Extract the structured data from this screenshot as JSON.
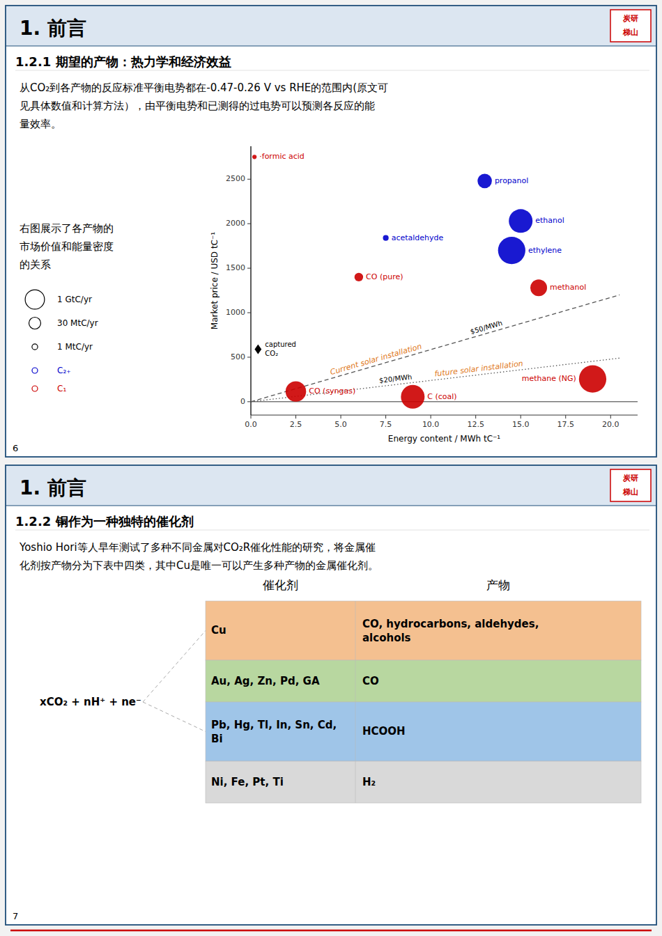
{
  "chart_data": {
    "type": "scatter",
    "x_label": "Energy content / MWh tC⁻¹",
    "y_label": "Market price / USD tC⁻¹",
    "xlim": [
      0,
      21.5
    ],
    "ylim": [
      -150,
      2870
    ],
    "xticks": [
      {
        "value": 0,
        "label": "0.0"
      },
      2.5,
      {
        "value": 5,
        "label": "5.0"
      },
      7.5,
      {
        "value": 10,
        "label": "10.0"
      },
      12.5,
      {
        "value": 15,
        "label": "15.0"
      },
      17.5,
      {
        "value": 20,
        "label": "20.0"
      }
    ],
    "yticks": [
      0,
      500,
      1000,
      1500,
      2000,
      2500
    ],
    "grid": false,
    "legend": "left",
    "series": [
      {
        "name": "C₂₊",
        "color": "#0000cc",
        "labels": [
          "propanol",
          "ethanol",
          "acetaldehyde",
          "ethylene"
        ],
        "x": [
          13.0,
          15.0,
          7.5,
          14.5
        ],
        "values": [
          2480,
          2030,
          1840,
          1700
        ],
        "sizes": [
          220,
          600,
          35,
          800
        ]
      },
      {
        "name": "C₁",
        "color": "#cc0000",
        "labels": [
          "·formic acid",
          "methanol",
          "CO (pure)",
          "CO (syngas)",
          "C (coal)",
          "methane (NG)"
        ],
        "x": [
          0.2,
          16.0,
          6.0,
          2.5,
          9.0,
          19.0
        ],
        "values": [
          2750,
          1280,
          1400,
          115,
          55,
          255
        ],
        "sizes": [
          20,
          300,
          80,
          450,
          600,
          800
        ]
      }
    ],
    "size_legend": [
      {
        "label": "1 GtC/yr",
        "size": 400
      },
      {
        "label": "30 MtC/yr",
        "size": 150
      },
      {
        "label": "1 MtC/yr",
        "size": 35
      }
    ],
    "reference_lines": [
      {
        "name": "$50/MWh",
        "annotation": "Current solar installation",
        "x": [
          0,
          20.5
        ],
        "values": [
          0,
          1200
        ],
        "line_style": "dashed"
      },
      {
        "name": "$20/MWh",
        "annotation": "future solar installation",
        "x": [
          0,
          20.5
        ],
        "values": [
          0,
          490
        ],
        "line_style": "dotted"
      }
    ],
    "annotation_color": "#e07820",
    "marker_points": [
      {
        "x": 0.4,
        "y": 590,
        "marker": "diamond",
        "labels": [
          "captured",
          "CO₂"
        ]
      }
    ]
  },
  "slides": [
    {
      "title": "1. 前言",
      "stamp": [
        "炭研",
        "梯山"
      ],
      "subtitle": "1.2.1 期望的产物：热力学和经济效益",
      "body": [
        "从CO₂到各产物的反应标准平衡电势都在-0.47-0.26 V vs RHE的范围内(原文可",
        "见具体数值和计算方法），由平衡电势和已测得的过电势可以预测各反应的能",
        "量效率。"
      ],
      "side_text": [
        "右图展示了各产物的",
        "市场价值和能量密度",
        "的关系"
      ],
      "page": "6"
    },
    {
      "title": "1. 前言",
      "stamp": [
        "炭研",
        "梯山"
      ],
      "subtitle": "1.2.2 铜作为一种独特的催化剂",
      "body": [
        "Yoshio Hori等人早年测试了多种不同金属对CO₂R催化性能的研究，将金属催",
        "化剂按产物分为下表中四类，其中Cu是唯一可以产生多种产物的金属催化剂。"
      ],
      "page": "7",
      "table": {
        "headers": [
          "催化剂",
          "产物"
        ],
        "rows": [
          {
            "catalyst": "Cu",
            "products": "CO, hydrocarbons, aldehydes,\nalcohols",
            "color": "#f4c090"
          },
          {
            "catalyst": "Au, Ag, Zn, Pd, GA",
            "products": "CO",
            "color": "#b8d7a0"
          },
          {
            "catalyst": "Pb, Hg, Tl, In, Sn, Cd,\nBi",
            "products": "HCOOH",
            "color": "#9fc5e8"
          },
          {
            "catalyst": "Ni, Fe, Pt, Ti",
            "products": "H₂",
            "color": "#d9d9d9"
          }
        ],
        "equation": "xCO₂ + nH⁺ + ne⁻"
      }
    }
  ]
}
